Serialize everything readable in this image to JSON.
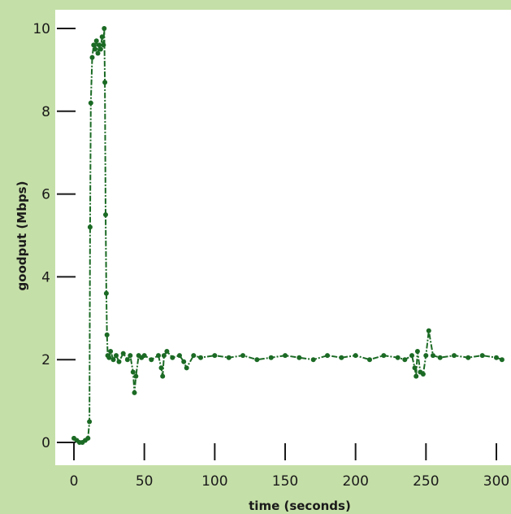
{
  "colors": {
    "background": "#c5dfa8",
    "plot_area": "#ffffff",
    "series": "#1b6a24",
    "axis": "#1a1a1a"
  },
  "chart_data": {
    "type": "line",
    "title": "",
    "xlabel": "time (seconds)",
    "ylabel": "goodput (Mbps)",
    "xlim": [
      0,
      300
    ],
    "ylim": [
      0,
      10
    ],
    "x_ticks": [
      0,
      50,
      100,
      150,
      200,
      250,
      300
    ],
    "x_tick_labels": [
      "0",
      "50",
      "100",
      "150",
      "200",
      "250",
      "300"
    ],
    "y_ticks": [
      0,
      2,
      4,
      6,
      8,
      10
    ],
    "y_tick_labels": [
      "0",
      "2",
      "4",
      "6",
      "8",
      "10"
    ],
    "grid": false,
    "legend": "none",
    "series": [
      {
        "x": [
          0,
          2,
          4,
          6,
          8,
          10,
          11,
          11.5,
          12,
          13,
          14,
          15,
          16,
          17,
          18,
          19,
          20,
          21,
          21.5,
          22,
          22.5,
          23,
          23.5,
          24,
          25,
          26,
          28,
          30,
          32,
          35,
          38,
          40,
          42,
          43,
          44,
          46,
          48,
          50,
          55,
          60,
          62,
          63,
          64,
          66,
          70,
          75,
          78,
          80,
          85,
          90,
          100,
          110,
          120,
          130,
          140,
          150,
          160,
          170,
          180,
          190,
          200,
          210,
          220,
          230,
          235,
          240,
          242,
          243,
          244,
          246,
          248,
          250,
          252,
          255,
          260,
          270,
          280,
          290,
          300,
          304
        ],
        "y": [
          0.1,
          0.05,
          0.0,
          0.0,
          0.05,
          0.1,
          0.5,
          5.2,
          8.2,
          9.3,
          9.6,
          9.5,
          9.7,
          9.4,
          9.6,
          9.5,
          9.8,
          9.6,
          10.0,
          8.7,
          5.5,
          3.6,
          2.6,
          2.1,
          2.05,
          2.2,
          2.0,
          2.1,
          1.95,
          2.15,
          2.0,
          2.1,
          1.7,
          1.2,
          1.6,
          2.1,
          2.05,
          2.1,
          2.0,
          2.1,
          1.8,
          1.6,
          2.1,
          2.2,
          2.05,
          2.1,
          1.95,
          1.8,
          2.1,
          2.05,
          2.1,
          2.05,
          2.1,
          2.0,
          2.05,
          2.1,
          2.05,
          2.0,
          2.1,
          2.05,
          2.1,
          2.0,
          2.1,
          2.05,
          2.0,
          2.1,
          1.8,
          1.6,
          2.2,
          1.7,
          1.65,
          2.1,
          2.7,
          2.1,
          2.05,
          2.1,
          2.05,
          2.1,
          2.05,
          2.0
        ]
      }
    ]
  }
}
